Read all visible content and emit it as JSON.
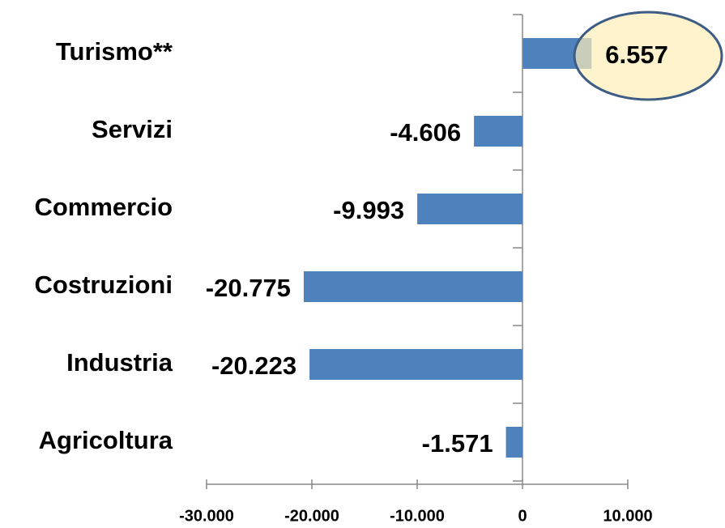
{
  "chart_data": {
    "type": "barh",
    "categories": [
      "Turismo**",
      "Servizi",
      "Commercio",
      "Costruzioni",
      "Industria",
      "Agricoltura"
    ],
    "values": [
      6557,
      -4606,
      -9993,
      -20775,
      -20223,
      -1571
    ],
    "value_labels": [
      "6.557",
      "-4.606",
      "-9.993",
      "-20.775",
      "-20.223",
      "-1.571"
    ],
    "color": "#4f81bd",
    "xlim": [
      -30000,
      10000
    ],
    "xticks": [
      {
        "value": -30000,
        "label": "-30.000"
      },
      {
        "value": -20000,
        "label": "-20.000"
      },
      {
        "value": -10000,
        "label": "-10.000"
      },
      0,
      {
        "value": 10000,
        "label": "10.000"
      }
    ]
  }
}
